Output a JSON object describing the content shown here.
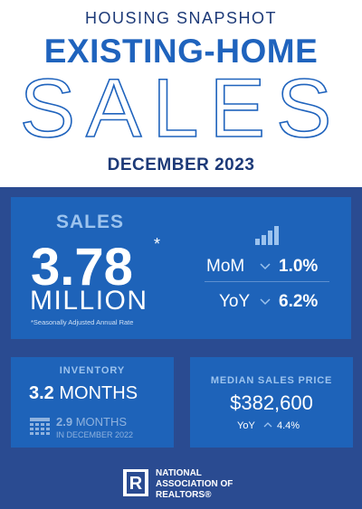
{
  "header": {
    "kicker": "HOUSING SNAPSHOT",
    "title": "EXISTING-HOME",
    "big_title": "SALES",
    "period": "DECEMBER 2023"
  },
  "sales": {
    "label": "SALES",
    "value": "3.78",
    "asterisk": "*",
    "unit": "MILLION",
    "note": "*Seasonally Adjusted Annual Rate",
    "changes": [
      {
        "label": "MoM",
        "value": "1.0%"
      },
      {
        "label": "YoY",
        "value": "6.2%"
      }
    ]
  },
  "inventory": {
    "label": "INVENTORY",
    "value": "3.2",
    "unit": "MONTHS",
    "prior_value": "2.9",
    "prior_unit": "MONTHS",
    "prior_period": "IN DECEMBER 2022"
  },
  "median_price": {
    "label": "MEDIAN SALES PRICE",
    "value": "$382,600",
    "change_label": "YoY",
    "change_value": "4.4%"
  },
  "footer": {
    "org_line1": "NATIONAL",
    "org_line2": "ASSOCIATION OF",
    "org_line3": "REALTORS®"
  }
}
